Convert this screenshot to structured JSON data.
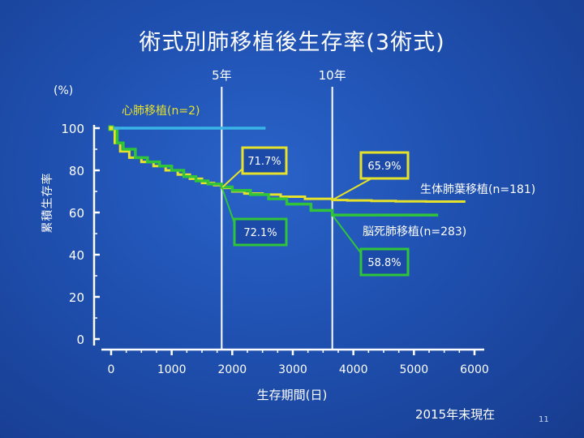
{
  "title": "術式別肺移植後生存率(3術式)",
  "unit_label": "(%)",
  "as_of": "2015年末現在",
  "page_number": "11",
  "chart_data": {
    "type": "line",
    "title": "術式別肺移植後生存率(3術式)",
    "xlabel": "生存期間(日)",
    "ylabel": "累積生存率",
    "xlim": [
      0,
      6000
    ],
    "ylim": [
      0,
      100
    ],
    "x_ticks": [
      "0",
      "1000",
      "2000",
      "3000",
      "4000",
      "5000",
      "6000"
    ],
    "y_ticks": [
      "0",
      "20",
      "40",
      "60",
      "80",
      "100"
    ],
    "x_tick_values": [
      0,
      1000,
      2000,
      3000,
      4000,
      5000,
      6000
    ],
    "y_tick_values": [
      0,
      20,
      40,
      60,
      80,
      100
    ],
    "reference_lines": [
      {
        "label": "5年",
        "x": 1826
      },
      {
        "label": "10年",
        "x": 3652
      }
    ],
    "series": [
      {
        "name": "心肺移植(n=2)",
        "color": "#3ab4e6",
        "x": [
          0,
          0,
          2550
        ],
        "y": [
          100,
          100,
          100
        ]
      },
      {
        "name": "生体肺葉移植(n=181)",
        "color": "#e6e12a",
        "x": [
          0,
          60,
          150,
          300,
          500,
          700,
          900,
          1100,
          1300,
          1500,
          1700,
          1826,
          2000,
          2200,
          2500,
          2800,
          3200,
          3652,
          3900,
          4300,
          4700,
          5200,
          5700,
          5850
        ],
        "y": [
          100,
          93,
          89,
          86,
          84,
          82,
          80,
          78,
          76,
          74,
          73,
          71.7,
          70,
          69,
          68.5,
          67.5,
          66.5,
          65.9,
          65.7,
          65.5,
          65.3,
          65.2,
          65.2,
          65.2
        ]
      },
      {
        "name": "脳死肺移植(n=283)",
        "color": "#2fc43a",
        "x": [
          0,
          100,
          200,
          400,
          600,
          800,
          1000,
          1200,
          1400,
          1600,
          1826,
          2000,
          2300,
          2600,
          2900,
          3300,
          3652,
          4000,
          4500,
          5000,
          5400
        ],
        "y": [
          100,
          93,
          90,
          86,
          84,
          82,
          80,
          77,
          75,
          73.5,
          72.1,
          70.5,
          68.5,
          66.5,
          64,
          61,
          58.8,
          58.8,
          58.8,
          58.8,
          58.8
        ]
      }
    ],
    "annotations": [
      {
        "text": "71.7%",
        "series": "生体肺葉移植(n=181)",
        "x": 1826,
        "y": 71.7
      },
      {
        "text": "65.9%",
        "series": "生体肺葉移植(n=181)",
        "x": 3652,
        "y": 65.9
      },
      {
        "text": "72.1%",
        "series": "脳死肺移植(n=283)",
        "x": 1826,
        "y": 72.1
      },
      {
        "text": "58.8%",
        "series": "脳死肺移植(n=283)",
        "x": 3652,
        "y": 58.8
      }
    ],
    "legend_placement": "inline"
  }
}
